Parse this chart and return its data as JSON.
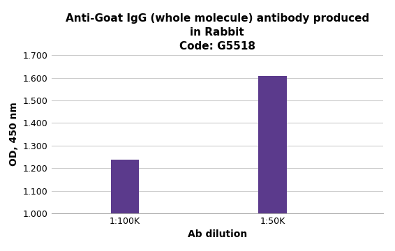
{
  "title_line1": "Anti-Goat IgG (whole molecule) antibody produced",
  "title_line2": "in Rabbit",
  "title_line3": "Code: G5518",
  "categories": [
    "1:100K",
    "1:50K"
  ],
  "values": [
    1.237,
    1.607
  ],
  "bar_color": "#5b3a8c",
  "xlabel": "Ab dilution",
  "ylabel": "OD, 450 nm",
  "ylim": [
    1.0,
    1.7
  ],
  "yticks": [
    1.0,
    1.1,
    1.2,
    1.3,
    1.4,
    1.5,
    1.6,
    1.7
  ],
  "background_color": "#ffffff",
  "title_fontsize": 11,
  "axis_label_fontsize": 10,
  "tick_fontsize": 9,
  "bar_width": 0.38,
  "x_positions": [
    1,
    3
  ],
  "xlim": [
    0,
    4.5
  ]
}
